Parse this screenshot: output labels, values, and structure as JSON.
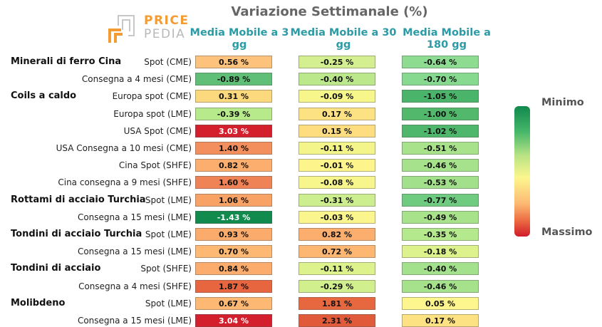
{
  "logo": {
    "word1": "PRICE",
    "word2": "PEDIA",
    "color_orange": "#f39c34",
    "color_grey": "#b8b8b8"
  },
  "legend": {
    "min_label": "Minimo",
    "max_label": "Massimo",
    "colors": [
      "#10894d",
      "#48b86a",
      "#b9e384",
      "#fdf68e",
      "#fcb872",
      "#ec6a41",
      "#cf1b2b"
    ]
  },
  "chart_data": {
    "type": "table",
    "title": "Variazione Settimanale (%)",
    "columns": [
      "Media Mobile a 3 gg",
      "Media Mobile a 30 gg",
      "Media Mobile a 180 gg"
    ],
    "rows": [
      {
        "group": "Minerali di ferro Cina",
        "label": "Spot (CME)",
        "values": [
          "0.56 %",
          "-0.25 %",
          "-0.64 %"
        ]
      },
      {
        "group": "",
        "label": "Consegna a 4 mesi (CME)",
        "values": [
          "-0.89 %",
          "-0.40 %",
          "-0.70 %"
        ]
      },
      {
        "group": "Coils a caldo",
        "label": "Europa spot (CME)",
        "values": [
          "0.31 %",
          "-0.09 %",
          "-1.05 %"
        ]
      },
      {
        "group": "",
        "label": "Europa spot (LME)",
        "values": [
          "-0.39 %",
          "0.17 %",
          "-1.00 %"
        ]
      },
      {
        "group": "",
        "label": "USA Spot (CME)",
        "values": [
          "3.03 %",
          "0.15 %",
          "-1.02 %"
        ]
      },
      {
        "group": "",
        "label": "USA Consegna a 10 mesi (CME)",
        "values": [
          "1.40 %",
          "-0.11 %",
          "-0.51 %"
        ]
      },
      {
        "group": "",
        "label": "Cina Spot (SHFE)",
        "values": [
          "0.82 %",
          "-0.01 %",
          "-0.46 %"
        ]
      },
      {
        "group": "",
        "label": "Cina consegna a 9 mesi (SHFE)",
        "values": [
          "1.60 %",
          "-0.08 %",
          "-0.53 %"
        ]
      },
      {
        "group": "Rottami di acciaio Turchia",
        "label": "Spot (LME)",
        "values": [
          "1.06 %",
          "-0.31 %",
          "-0.77 %"
        ]
      },
      {
        "group": "",
        "label": "Consegna a 15 mesi (LME)",
        "values": [
          "-1.43 %",
          "-0.03 %",
          "-0.49 %"
        ]
      },
      {
        "group": "Tondini di acciaio Turchia",
        "label": "Spot (LME)",
        "values": [
          "0.93 %",
          "0.82 %",
          "-0.35 %"
        ]
      },
      {
        "group": "",
        "label": "Consegna a 15 mesi (LME)",
        "values": [
          "0.70 %",
          "0.72 %",
          "-0.18 %"
        ]
      },
      {
        "group": "Tondini di acciaio",
        "label": "Spot (SHFE)",
        "values": [
          "0.84 %",
          "-0.11 %",
          "-0.40 %"
        ]
      },
      {
        "group": "",
        "label": "Consegna a 4 mesi (SHFE)",
        "values": [
          "1.87 %",
          "-0.29 %",
          "-0.46 %"
        ]
      },
      {
        "group": "Molibdeno",
        "label": "Spot (LME)",
        "values": [
          "0.67 %",
          "1.81 %",
          "0.05 %"
        ]
      },
      {
        "group": "",
        "label": "Consegna a 15 mesi (LME)",
        "values": [
          "3.04 %",
          "2.31 %",
          "0.17 %"
        ]
      }
    ],
    "cell_colors": [
      [
        "#fdc27b",
        "#d3ef8f",
        "#8ddc91"
      ],
      [
        "#5fbf76",
        "#bce88c",
        "#86d98f"
      ],
      [
        "#fdd97d",
        "#f6f68b",
        "#4ab56a"
      ],
      [
        "#b6ea8b",
        "#fde283",
        "#52b86c"
      ],
      [
        "#d41f2d",
        "#fddd80",
        "#4fb76b"
      ],
      [
        "#f38f5c",
        "#f3f58b",
        "#a8e38c"
      ],
      [
        "#fcae6e",
        "#fdf58b",
        "#a6e28c"
      ],
      [
        "#ef8356",
        "#f7f68c",
        "#a3e08c"
      ],
      [
        "#f9a266",
        "#cdee8e",
        "#6ecb80"
      ],
      [
        "#108a4d",
        "#fbf58d",
        "#a8e38c"
      ],
      [
        "#fbab6c",
        "#fcae6e",
        "#b5e98d"
      ],
      [
        "#fdb873",
        "#fdb773",
        "#ddf28d"
      ],
      [
        "#fcac6c",
        "#ddf28d",
        "#a4e18c"
      ],
      [
        "#e8663f",
        "#d2ef8e",
        "#a6e28c"
      ],
      [
        "#fdb873",
        "#e7673f",
        "#fdf68e"
      ],
      [
        "#d41f2d",
        "#e15b3b",
        "#fde283"
      ]
    ],
    "dark_text_cells": [
      [
        4,
        0
      ],
      [
        9,
        0
      ],
      [
        15,
        0
      ]
    ]
  }
}
